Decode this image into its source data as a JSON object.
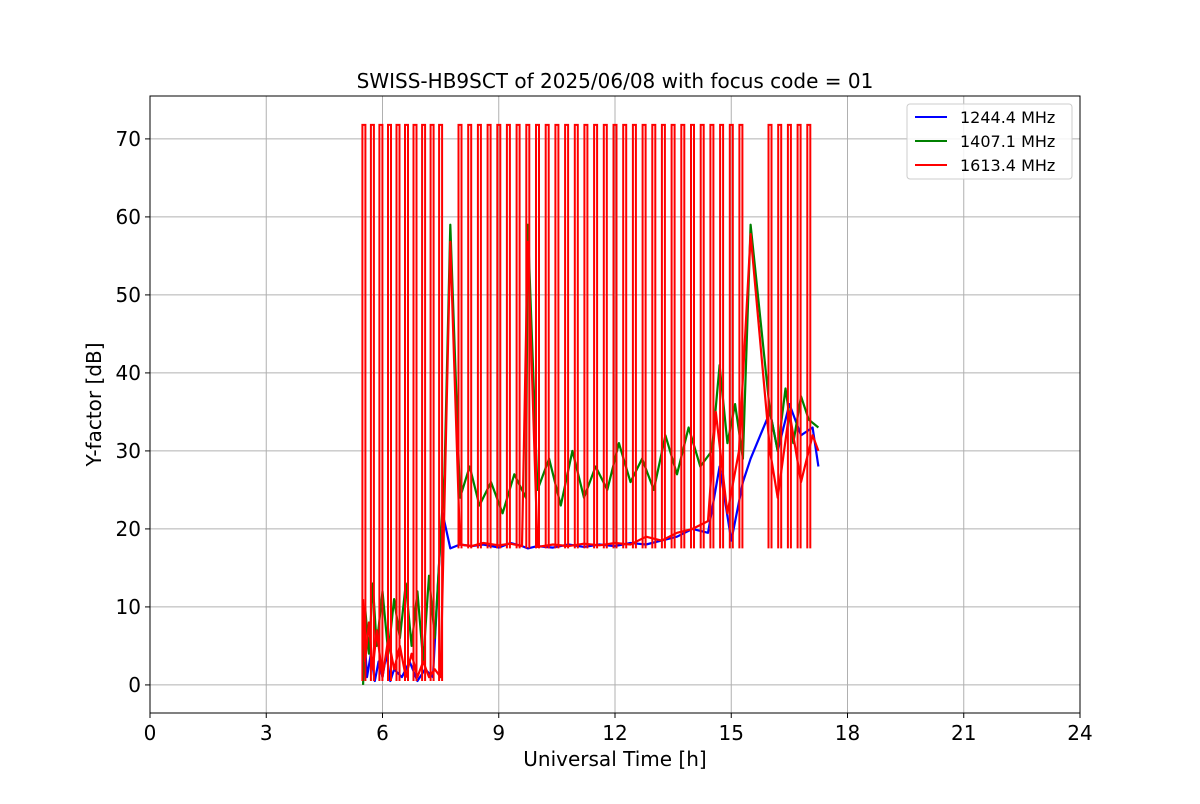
{
  "chart_data": {
    "type": "line",
    "title": "SWISS-HB9SCT of 2025/06/08 with focus code = 01",
    "xlabel": "Universal Time [h]",
    "ylabel": "Y-factor [dB]",
    "xlim": [
      0,
      24
    ],
    "ylim": [
      -3.6,
      75.5
    ],
    "xticks": [
      0,
      3,
      6,
      9,
      12,
      15,
      18,
      21,
      24
    ],
    "yticks": [
      0,
      10,
      20,
      30,
      40,
      50,
      60,
      70
    ],
    "grid": true,
    "legend_position": "top-right",
    "series": [
      {
        "name": "1244.4 MHz",
        "color": "#0000ff",
        "x": [
          5.5,
          5.55,
          5.6,
          5.7,
          5.8,
          5.9,
          6.0,
          6.1,
          6.2,
          6.3,
          6.5,
          6.7,
          6.9,
          7.1,
          7.3,
          7.5,
          7.55,
          7.75,
          8.0,
          8.3,
          8.6,
          9.0,
          9.3,
          9.6,
          9.75,
          10.0,
          10.4,
          10.8,
          11.2,
          11.6,
          12.0,
          12.4,
          12.8,
          13.2,
          13.6,
          14.0,
          14.4,
          14.7,
          15.0,
          15.3,
          15.5,
          16.0,
          16.2,
          16.5,
          16.8,
          17.1,
          17.25
        ],
        "y": [
          2,
          5,
          1,
          4,
          0.5,
          3,
          1,
          4,
          0.5,
          2,
          1,
          3,
          0.5,
          2,
          1,
          19,
          22,
          17.5,
          18,
          17.8,
          18,
          17.6,
          18.2,
          17.8,
          17.5,
          17.8,
          17.6,
          18,
          17.7,
          18,
          17.8,
          18.2,
          18,
          18.5,
          19,
          20,
          19.5,
          28,
          18.5,
          26,
          29,
          35,
          30,
          36,
          32,
          33,
          28
        ]
      },
      {
        "name": "1407.1 MHz",
        "color": "#008000",
        "x": [
          5.5,
          5.55,
          5.65,
          5.75,
          5.85,
          6.0,
          6.15,
          6.3,
          6.45,
          6.6,
          6.75,
          6.9,
          7.05,
          7.2,
          7.35,
          7.5,
          7.6,
          7.75,
          8.0,
          8.25,
          8.5,
          8.8,
          9.1,
          9.4,
          9.7,
          9.75,
          10.0,
          10.3,
          10.6,
          10.9,
          11.2,
          11.5,
          11.8,
          12.1,
          12.4,
          12.7,
          13.0,
          13.3,
          13.6,
          13.9,
          14.2,
          14.5,
          14.7,
          14.9,
          15.1,
          15.3,
          15.5,
          16.0,
          16.2,
          16.4,
          16.6,
          16.8,
          17.0,
          17.25
        ],
        "y": [
          0,
          10,
          4,
          13,
          5,
          12,
          4,
          11,
          6,
          13,
          5,
          12,
          3,
          14,
          6,
          19,
          27,
          59,
          24,
          28,
          23,
          26,
          22,
          27,
          24,
          59,
          25,
          29,
          23,
          30,
          24,
          28,
          25,
          31,
          26,
          29,
          25,
          32,
          27,
          33,
          28,
          30,
          41,
          31,
          36,
          29,
          59,
          35,
          30,
          38,
          31,
          37,
          34,
          33
        ]
      },
      {
        "name": "1613.4 MHz",
        "color": "#ff0000",
        "x": [
          5.5,
          5.55,
          5.65,
          5.75,
          5.85,
          6.0,
          6.15,
          6.3,
          6.45,
          6.6,
          6.75,
          6.9,
          7.05,
          7.2,
          7.35,
          7.5,
          7.75,
          8.0,
          8.3,
          8.6,
          9.0,
          9.3,
          9.6,
          9.75,
          10.0,
          10.4,
          10.8,
          11.2,
          11.6,
          12.0,
          12.4,
          12.8,
          13.2,
          13.6,
          14.0,
          14.4,
          14.6,
          14.9,
          15.2,
          15.5,
          16.0,
          16.2,
          16.5,
          16.8,
          17.1,
          17.25
        ],
        "y": [
          11,
          3,
          8,
          2,
          7,
          1,
          6,
          2,
          5,
          1,
          4,
          1,
          3,
          1,
          2,
          1,
          56.8,
          18,
          17.8,
          18.2,
          17.9,
          18.1,
          17.8,
          56.8,
          17.7,
          18,
          17.8,
          18.1,
          17.9,
          18.2,
          18,
          19,
          18.5,
          19.5,
          20,
          21,
          35,
          22,
          30,
          57.8,
          30,
          24,
          35,
          26,
          32,
          30
        ]
      }
    ],
    "pulses": {
      "peak": 71.8,
      "times": [
        5.52,
        5.74,
        5.96,
        6.18,
        6.4,
        6.62,
        6.84,
        7.06,
        7.28,
        7.5,
        8.0,
        8.25,
        8.5,
        8.75,
        9.0,
        9.25,
        9.5,
        9.75,
        10.0,
        10.25,
        10.5,
        10.75,
        11.0,
        11.25,
        11.5,
        11.75,
        12.0,
        12.25,
        12.5,
        12.75,
        13.0,
        13.25,
        13.5,
        13.75,
        14.0,
        14.25,
        14.5,
        14.75,
        15.0,
        15.25,
        16.0,
        16.25,
        16.5,
        16.75,
        17.0
      ]
    }
  }
}
